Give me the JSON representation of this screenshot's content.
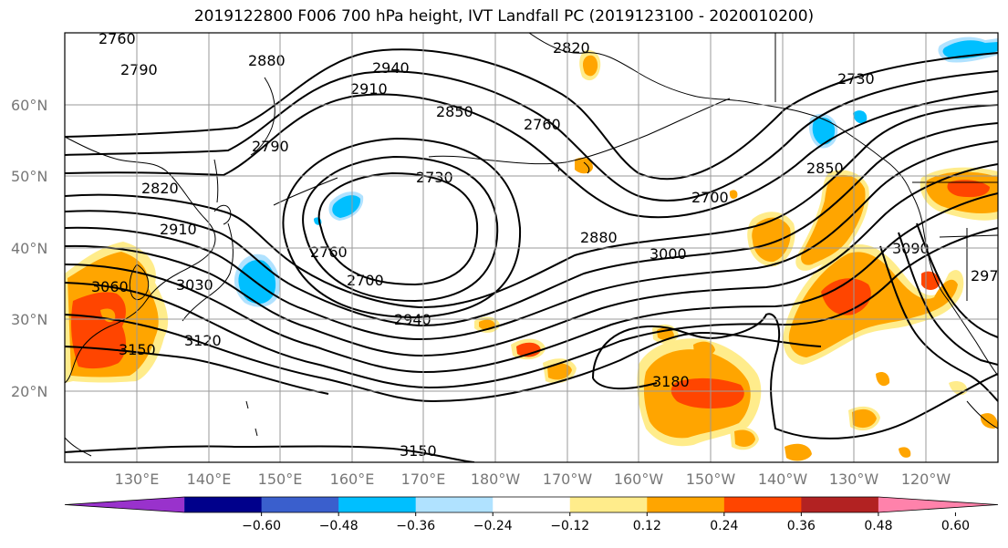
{
  "title": "2019122800 F006 700 hPa height, IVT Landfall PC (2019123100 - 2020010200)",
  "lat_ticks": [
    "60°N",
    "50°N",
    "40°N",
    "30°N",
    "20°N"
  ],
  "lon_ticks": [
    "130°E",
    "140°E",
    "150°E",
    "160°E",
    "170°E",
    "180°W",
    "170°W",
    "160°W",
    "150°W",
    "140°W",
    "130°W",
    "120°W"
  ],
  "contour_labels": [
    "2760",
    "2790",
    "2880",
    "2820",
    "2940",
    "2910",
    "2850",
    "2760",
    "2730",
    "2790",
    "2730",
    "2820",
    "2910",
    "3060",
    "3030",
    "3150",
    "3120",
    "2760",
    "2700",
    "2940",
    "2700",
    "2880",
    "3000",
    "3180",
    "2850",
    "3090",
    "3150",
    "2970"
  ],
  "colorbar": {
    "colors": [
      "#9932cc",
      "#00008b",
      "#3a5fcd",
      "#00bfff",
      "#b0e2ff",
      "#ffffff",
      "#ffec8b",
      "#ffa500",
      "#ff4500",
      "#b22222",
      "#ff82ab"
    ],
    "tick_labels": [
      "−0.60",
      "−0.48",
      "−0.36",
      "−0.24",
      "−0.12",
      "0.12",
      "0.24",
      "0.36",
      "0.48",
      "0.60"
    ],
    "extend": "both"
  }
}
